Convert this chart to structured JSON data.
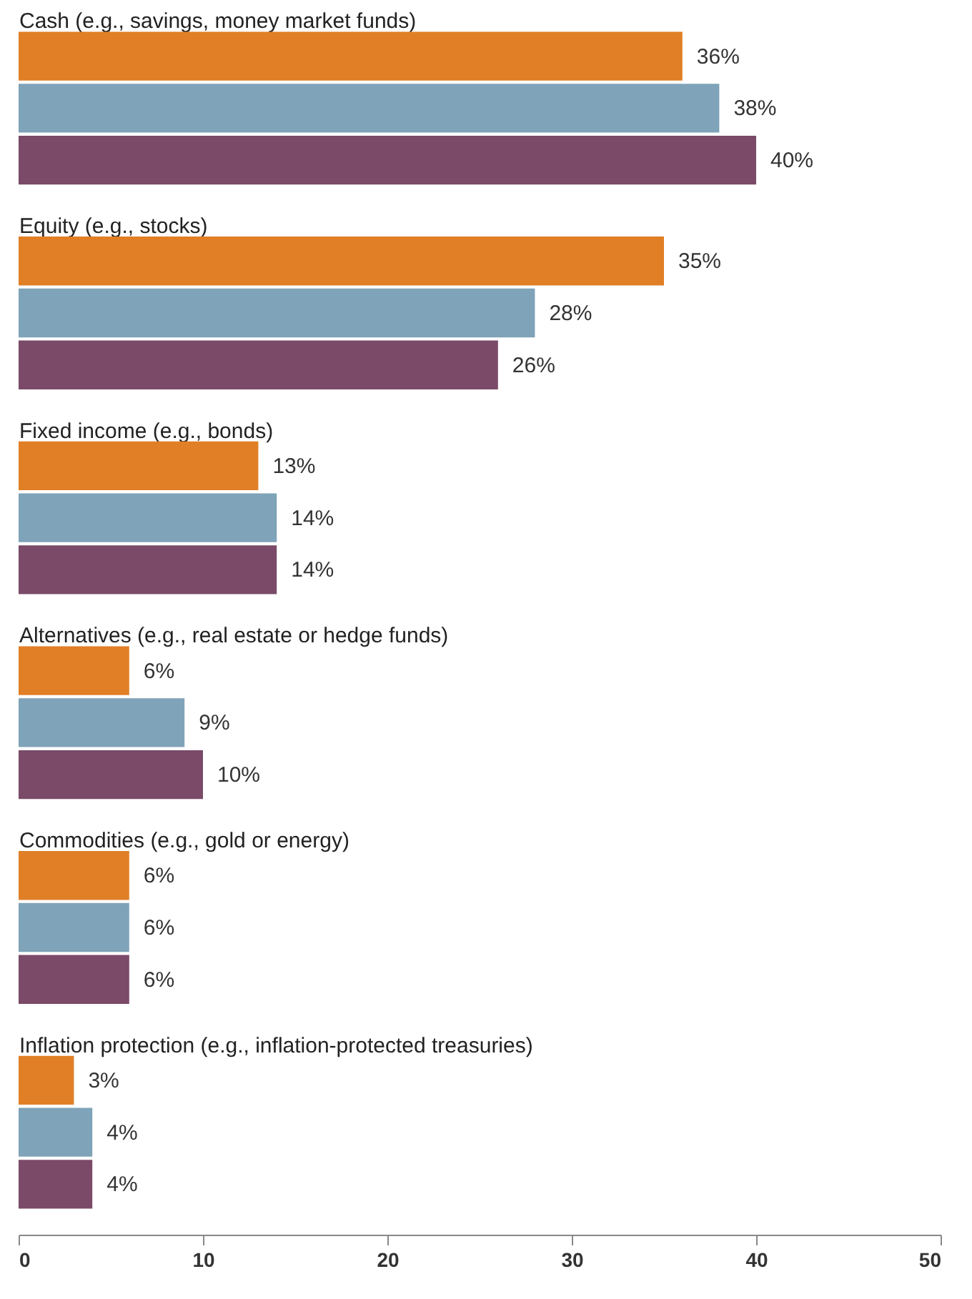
{
  "chart_data": {
    "type": "bar",
    "orientation": "horizontal",
    "categories": [
      "Cash (e.g., savings, money market funds)",
      "Equity (e.g., stocks)",
      "Fixed income (e.g., bonds)",
      "Alternatives (e.g., real estate or hedge funds)",
      "Commodities (e.g., gold or energy)",
      "Inflation protection (e.g., inflation-protected treasuries)"
    ],
    "series": [
      {
        "color": "#e07f26",
        "values": [
          36,
          35,
          13,
          6,
          6,
          3
        ],
        "value_labels": [
          "36%",
          "35%",
          "13%",
          "6%",
          "6%",
          "3%"
        ]
      },
      {
        "color": "#7fa3b8",
        "values": [
          38,
          28,
          14,
          9,
          6,
          4
        ],
        "value_labels": [
          "38%",
          "28%",
          "14%",
          "9%",
          "6%",
          "4%"
        ]
      },
      {
        "color": "#7a4a68",
        "values": [
          40,
          26,
          14,
          10,
          6,
          4
        ],
        "value_labels": [
          "40%",
          "26%",
          "14%",
          "10%",
          "6%",
          "4%"
        ]
      }
    ],
    "xlim": [
      0,
      50
    ],
    "xticks": [
      0,
      10,
      20,
      30,
      40,
      50
    ],
    "grid": false,
    "legend": false
  }
}
